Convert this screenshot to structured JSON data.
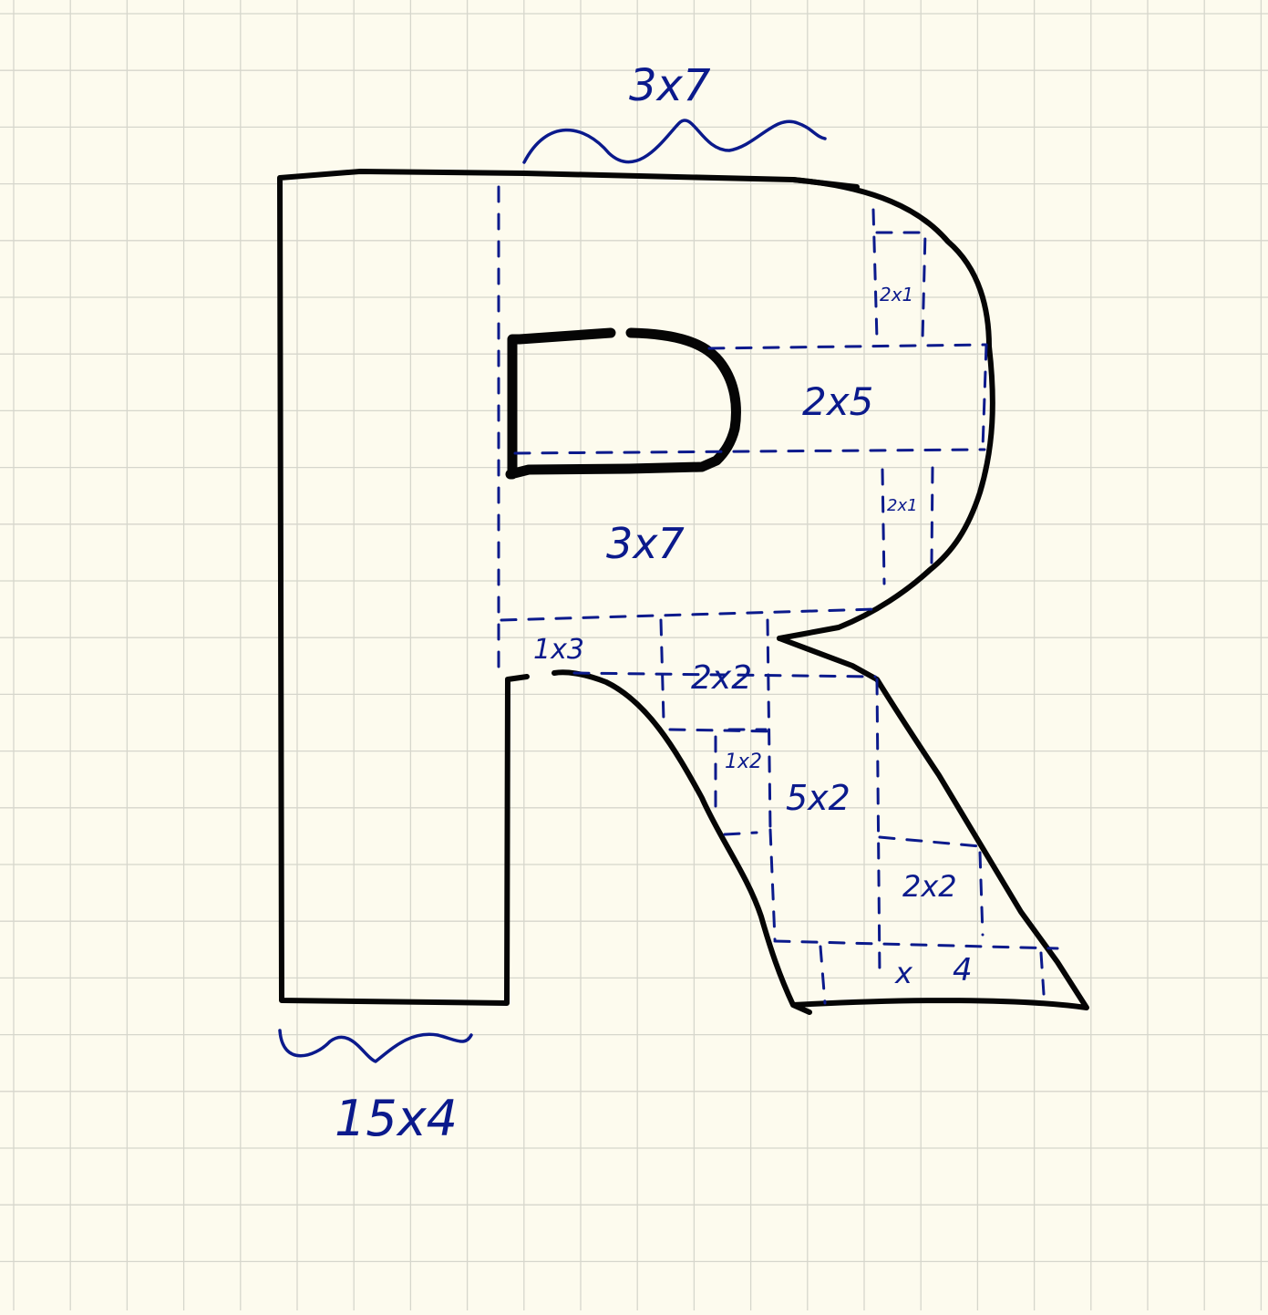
{
  "colors": {
    "paper": "#fdfbee",
    "grid": "#d6d6cc",
    "outline": "#050505",
    "annotation": "#0b1a8c"
  },
  "labels": {
    "top_brace": "3x7",
    "bottom_brace": "15x4",
    "bowl_right": "2x5",
    "bowl_top_right": "2x1",
    "bowl_lower_right": "2x1",
    "bowl_lower": "3x7",
    "leg_joint": "1x3",
    "leg_upper": "2x2",
    "leg_small": "1x2",
    "leg_middle": "5x2",
    "leg_lower": "2x2",
    "leg_foot_x": "x",
    "leg_foot_4": "4"
  }
}
